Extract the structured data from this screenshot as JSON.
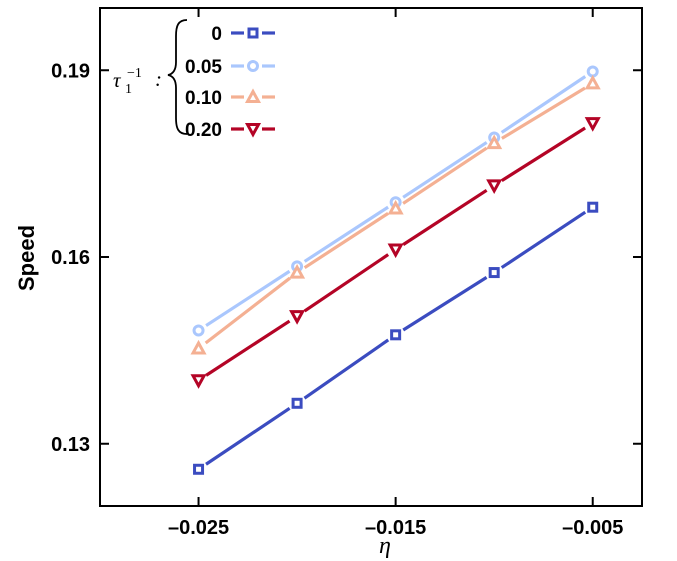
{
  "chart_data": {
    "type": "line",
    "title": "",
    "xlabel": "η",
    "ylabel": "Speed",
    "xlim": [
      -0.03,
      -0.0025
    ],
    "ylim": [
      0.12,
      0.2
    ],
    "xticks": [
      -0.025,
      -0.015,
      -0.005
    ],
    "xtick_labels": [
      "–0.025",
      "–0.015",
      "–0.005"
    ],
    "yticks": [
      0.13,
      0.16,
      0.19
    ],
    "ytick_labels": [
      "0.13",
      "0.16",
      "0.19"
    ],
    "grid": false,
    "legend_position": "top-left",
    "legend_title": {
      "symbol": "τ",
      "subscript": "1",
      "superscript": "−1",
      "suffix": ":"
    },
    "x": [
      -0.025,
      -0.02,
      -0.015,
      -0.01,
      -0.005
    ],
    "series": [
      {
        "name": "0",
        "values": [
          0.1259,
          0.1365,
          0.1475,
          0.1575,
          0.168
        ],
        "color": "#3b4cc0",
        "marker": "square"
      },
      {
        "name": "0.05",
        "values": [
          0.1482,
          0.1585,
          0.1688,
          0.1792,
          0.1898
        ],
        "color": "#aac7fd",
        "marker": "circle"
      },
      {
        "name": "0.10",
        "values": [
          0.1453,
          0.1575,
          0.1678,
          0.1783,
          0.1879
        ],
        "color": "#f4b093",
        "marker": "triangle-up"
      },
      {
        "name": "0.20",
        "values": [
          0.1402,
          0.1505,
          0.1612,
          0.1715,
          0.1815
        ],
        "color": "#b40426",
        "marker": "triangle-down"
      }
    ]
  }
}
